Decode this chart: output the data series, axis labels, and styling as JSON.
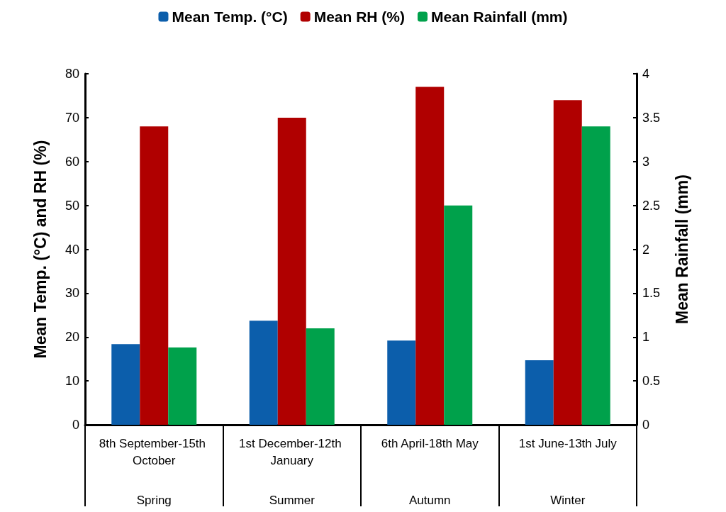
{
  "chart_data": {
    "type": "bar",
    "categories": [
      "8th September-15th October",
      "1st December-12th January",
      "6th April-18th May",
      "1st June-13th July"
    ],
    "series": [
      {
        "name": "Mean Temp. (°C)",
        "color": "#0c5eab",
        "values": [
          18.4,
          23.7,
          19.2,
          14.7
        ]
      },
      {
        "name": "Mean RH (%)",
        "color": "#b00000",
        "values": [
          68,
          70,
          77,
          74
        ]
      },
      {
        "name": "Mean Rainfall (mm)",
        "color": "#00a14b",
        "values": [
          0.88,
          1.1,
          2.5,
          3.4
        ],
        "axis": "y2"
      }
    ],
    "ylabel": "Mean Temp. (°C) and RH (%)",
    "y2label": "Mean Rainfall (mm)",
    "ylim": [
      0,
      80
    ],
    "yticks": [
      0,
      10,
      20,
      30,
      40,
      50,
      60,
      70,
      80
    ],
    "y2lim": [
      0,
      4
    ],
    "y2ticks": [
      0,
      0.5,
      1,
      1.5,
      2,
      2.5,
      3,
      3.5,
      4
    ],
    "annotations": [
      "Spring",
      "Summer",
      "Autumn",
      "Winter"
    ],
    "legend": "top",
    "grid": false
  }
}
